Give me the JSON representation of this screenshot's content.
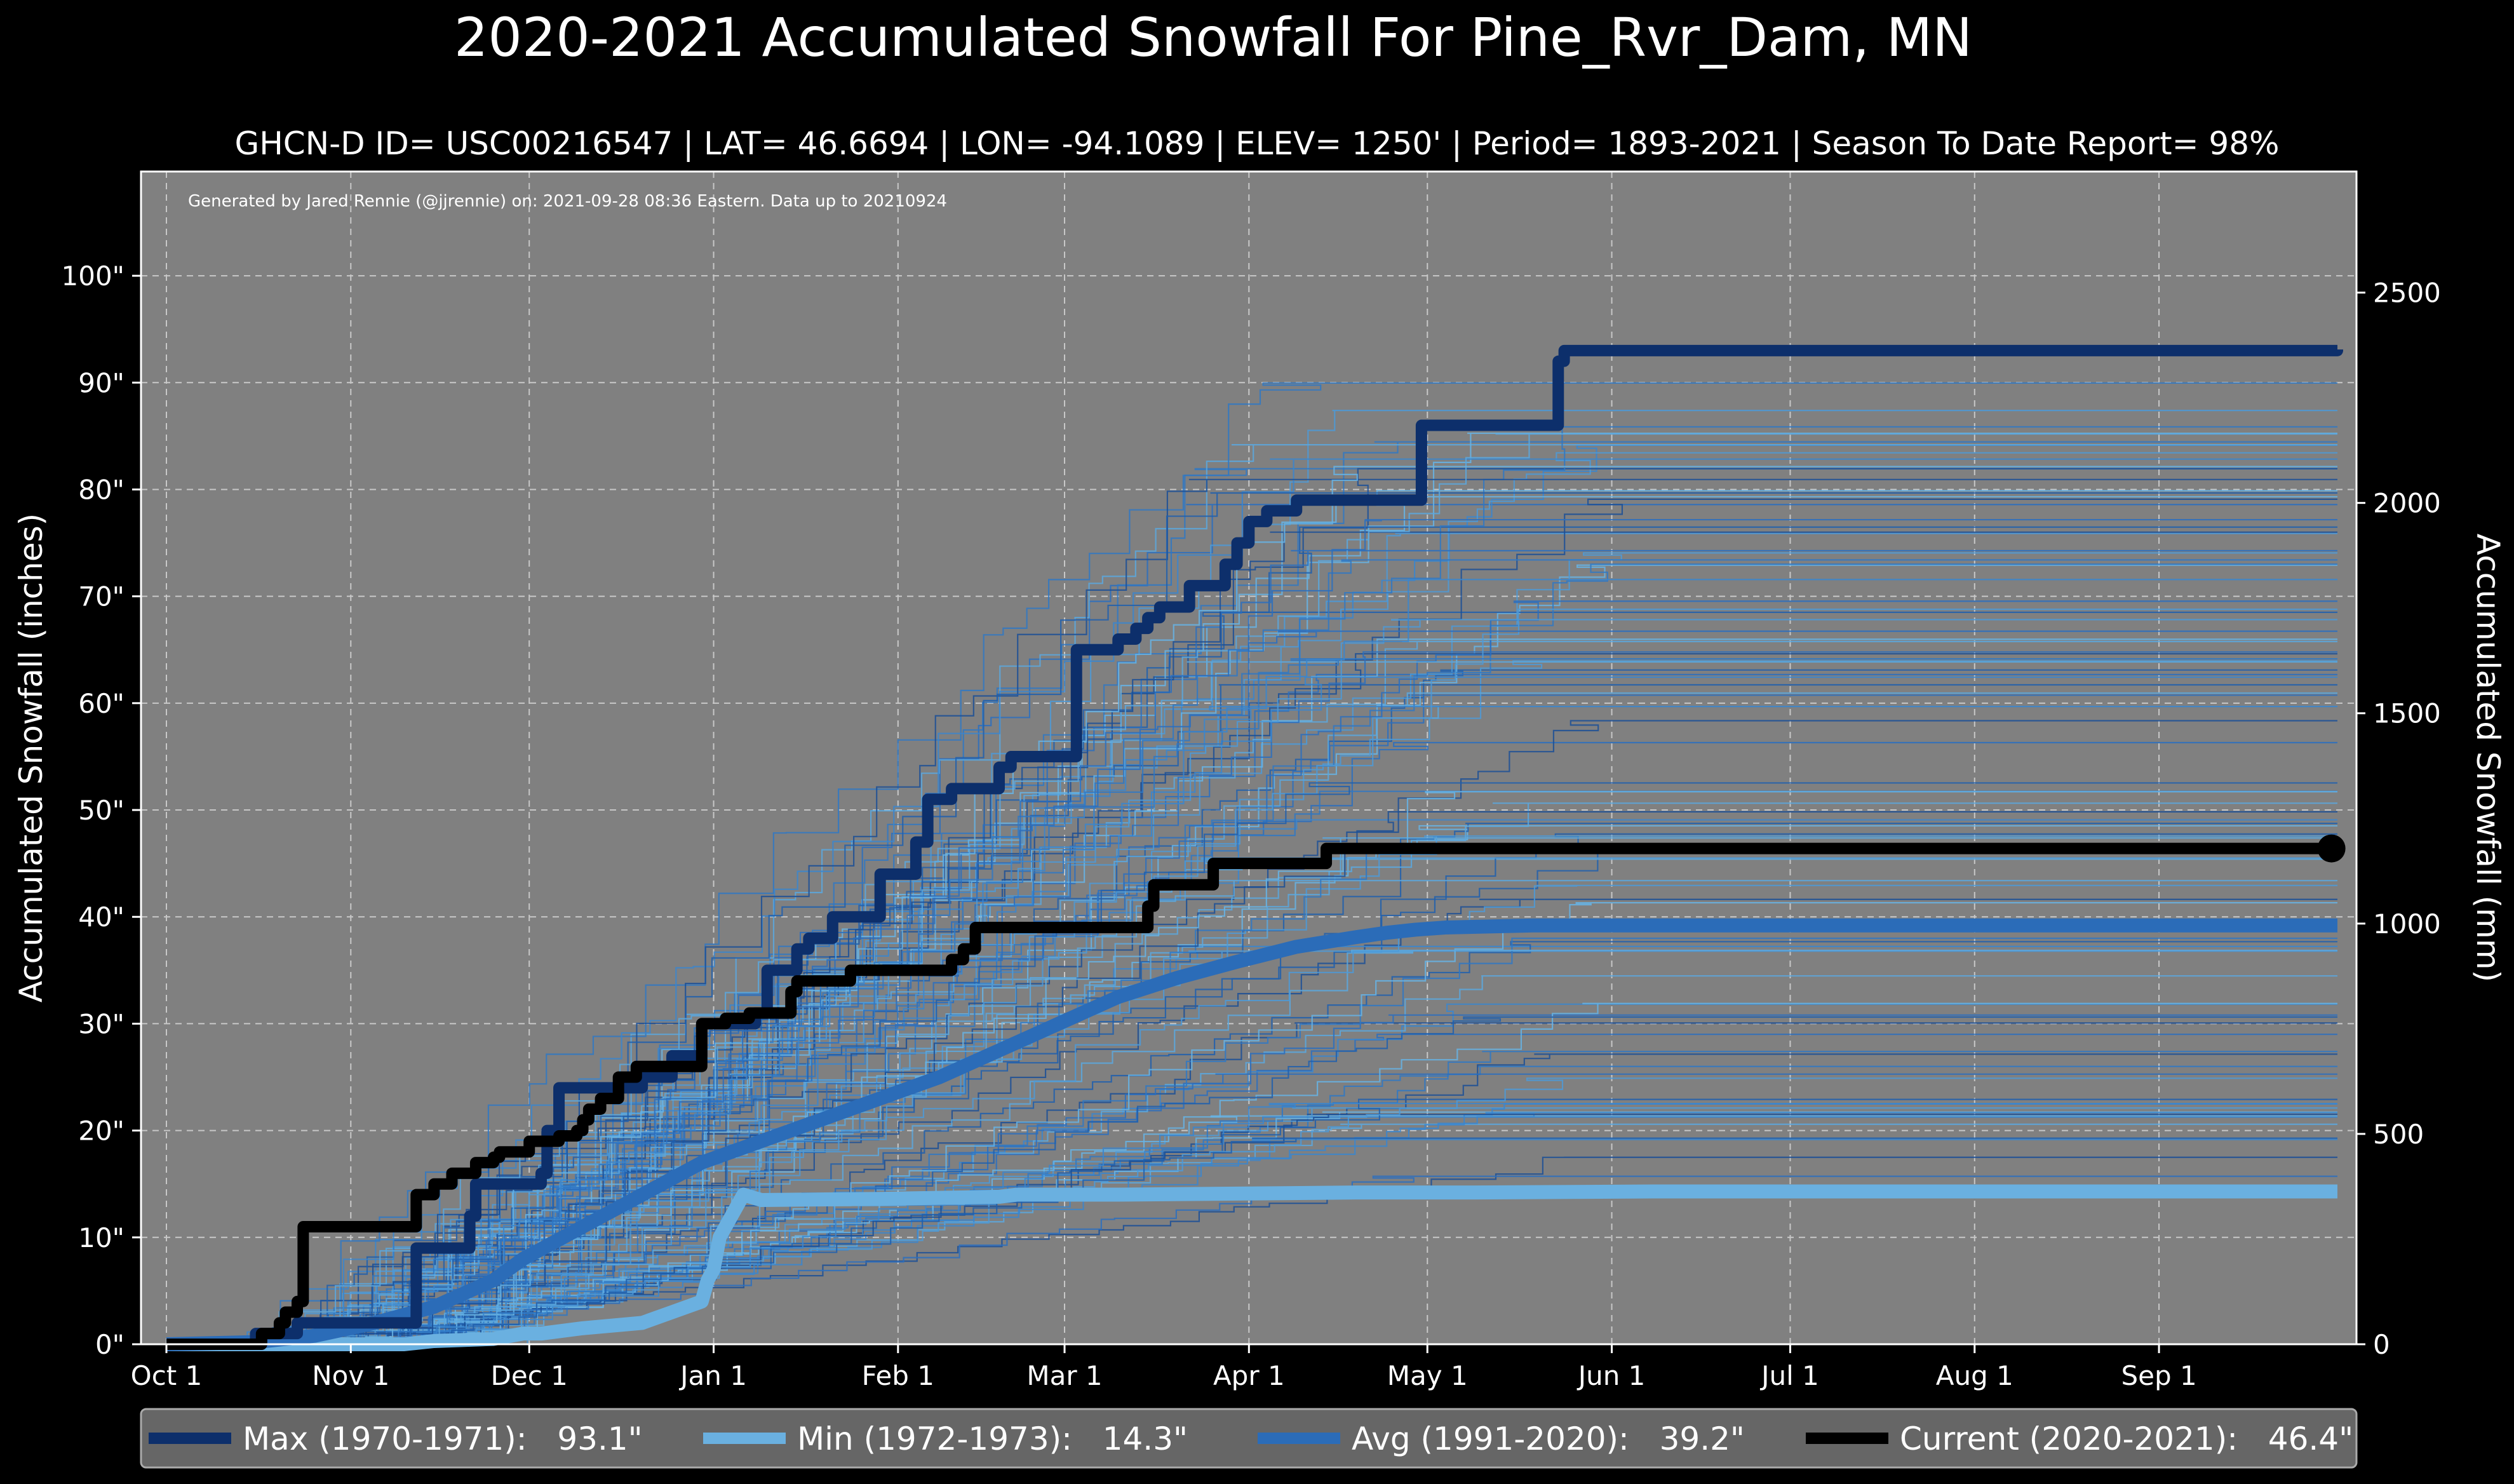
{
  "chart_data": {
    "type": "line",
    "title": "2020-2021 Accumulated Snowfall For Pine_Rvr_Dam, MN",
    "subtitle": "GHCN-D ID= USC00216547 | LAT= 46.6694 | LON= -94.1089 | ELEV= 1250' | Period= 1893-2021 | Season To Date Report= 98%",
    "credit": "Generated by Jared Rennie (@jjrennie) on: 2021-09-28 08:36 Eastern. Data up to 20210924",
    "ylabel_left": "Accumulated Snowfall (inches)",
    "ylabel_right": "Accumulated Snowfall (mm)",
    "xlim": [
      0,
      365
    ],
    "ylim": [
      0,
      105
    ],
    "y_ticks": [
      0,
      10,
      20,
      30,
      40,
      50,
      60,
      70,
      80,
      90,
      100
    ],
    "y_tick_labels": [
      "0\"",
      "10\"",
      "20\"",
      "30\"",
      "40\"",
      "50\"",
      "60\"",
      "70\"",
      "80\"",
      "90\"",
      "100\""
    ],
    "y2_ticks_mm": [
      0,
      500,
      1000,
      1500,
      2000,
      2500
    ],
    "y2_tick_labels": [
      "0",
      "500",
      "1000",
      "1500",
      "2000",
      "2500"
    ],
    "x_ticks": [
      0,
      31,
      61,
      92,
      123,
      151,
      182,
      212,
      243,
      273,
      304,
      335
    ],
    "x_tick_labels": [
      "Oct 1",
      "Nov 1",
      "Dec 1",
      "Jan 1",
      "Feb 1",
      "Mar 1",
      "Apr 1",
      "May 1",
      "Jun 1",
      "Jul 1",
      "Aug 1",
      "Sep 1"
    ],
    "background_season_count": 100,
    "series": [
      {
        "name": "Max",
        "legend": "Max (1970-1971):   93.1\"",
        "color": "#0d2f6b",
        "x": [
          0,
          14,
          15,
          20,
          22,
          30,
          41,
          42,
          44,
          51,
          52,
          58,
          63,
          64,
          66,
          69,
          72,
          75,
          74,
          80,
          85,
          90,
          95,
          99,
          101,
          106,
          108,
          110,
          112,
          114,
          120,
          126,
          128,
          132,
          138,
          140,
          142,
          147,
          152,
          153,
          156,
          160,
          163,
          165,
          167,
          169,
          172,
          175,
          178,
          180,
          182,
          185,
          188,
          190,
          198,
          203,
          210,
          211,
          228,
          234,
          235,
          365
        ],
        "y": [
          0,
          0,
          1,
          1,
          2,
          2,
          2,
          9,
          9,
          12,
          15,
          15,
          16,
          20,
          24,
          24,
          24,
          24,
          24,
          25,
          27,
          30,
          30,
          31,
          35,
          37,
          38,
          38,
          40,
          40,
          44,
          47,
          51,
          52,
          52,
          54,
          55,
          55,
          55,
          65,
          65,
          66,
          67,
          68,
          69,
          69,
          71,
          71,
          73,
          75,
          77,
          78,
          78,
          79,
          79,
          79,
          79,
          86,
          86,
          92,
          93,
          93.1
        ]
      },
      {
        "name": "Min",
        "legend": "Min (1972-1973):   14.3\"",
        "color": "#6ab0e0",
        "x": [
          0,
          40,
          45,
          55,
          60,
          63,
          70,
          80,
          85,
          90,
          91,
          92,
          93,
          94,
          95,
          96,
          97,
          100,
          120,
          140,
          143,
          160,
          180,
          200,
          220,
          250,
          280,
          300,
          330,
          365
        ],
        "y": [
          0,
          0,
          0.3,
          0.5,
          1,
          1,
          1.5,
          2,
          3,
          4,
          6,
          7,
          10,
          11,
          12,
          13,
          14,
          13.5,
          13.6,
          13.8,
          14,
          14.0,
          14.1,
          14.2,
          14.2,
          14.3,
          14.3,
          14.3,
          14.3,
          14.3
        ]
      },
      {
        "name": "Avg",
        "legend": "Avg (1991-2020):   39.2\"",
        "color": "#2b6cb8",
        "x": [
          0,
          15,
          25,
          35,
          45,
          55,
          60,
          70,
          80,
          90,
          100,
          110,
          120,
          130,
          140,
          150,
          160,
          170,
          180,
          190,
          200,
          205,
          210,
          215,
          230,
          260,
          300,
          365
        ],
        "y": [
          0,
          0.2,
          0.8,
          2,
          3.5,
          6,
          8,
          11,
          14,
          17,
          19,
          21,
          23,
          25,
          27.5,
          30,
          32.5,
          34.3,
          35.8,
          37.2,
          38.1,
          38.5,
          38.8,
          39.0,
          39.2,
          39.2,
          39.2,
          39.2
        ]
      },
      {
        "name": "Current",
        "legend": "Current (2020-2021):   46.4\"",
        "color": "#000000",
        "x": [
          0,
          15,
          16,
          18,
          19,
          20,
          22,
          23,
          41,
          42,
          44,
          45,
          47,
          48,
          51,
          52,
          54,
          55,
          56,
          61,
          63,
          65,
          66,
          69,
          70,
          71,
          73,
          76,
          77,
          79,
          84,
          90,
          91,
          94,
          96,
          98,
          104,
          105,
          106,
          110,
          112,
          115,
          119,
          121,
          122,
          123,
          124,
          125,
          131,
          132,
          134,
          136,
          139,
          150,
          151,
          153,
          156,
          162,
          164,
          165,
          166,
          176,
          177,
          178,
          180,
          185,
          188,
          194,
          195,
          360,
          364
        ],
        "y": [
          0,
          0,
          1,
          1,
          2,
          3,
          4,
          11,
          11,
          14,
          14,
          15,
          15,
          16,
          16,
          17,
          17,
          17.5,
          18,
          19,
          19,
          19,
          19.5,
          20,
          21,
          22,
          23,
          25,
          25,
          26,
          26,
          30,
          30,
          30.5,
          30.5,
          31,
          31,
          33,
          34,
          34,
          34,
          35,
          35,
          35,
          35,
          35,
          35,
          35,
          35,
          36,
          37,
          39,
          39,
          39,
          39,
          39,
          39,
          39,
          39,
          41,
          43,
          45,
          45,
          45,
          45,
          45,
          45,
          45,
          46.4,
          46.4,
          46.4
        ]
      }
    ]
  }
}
